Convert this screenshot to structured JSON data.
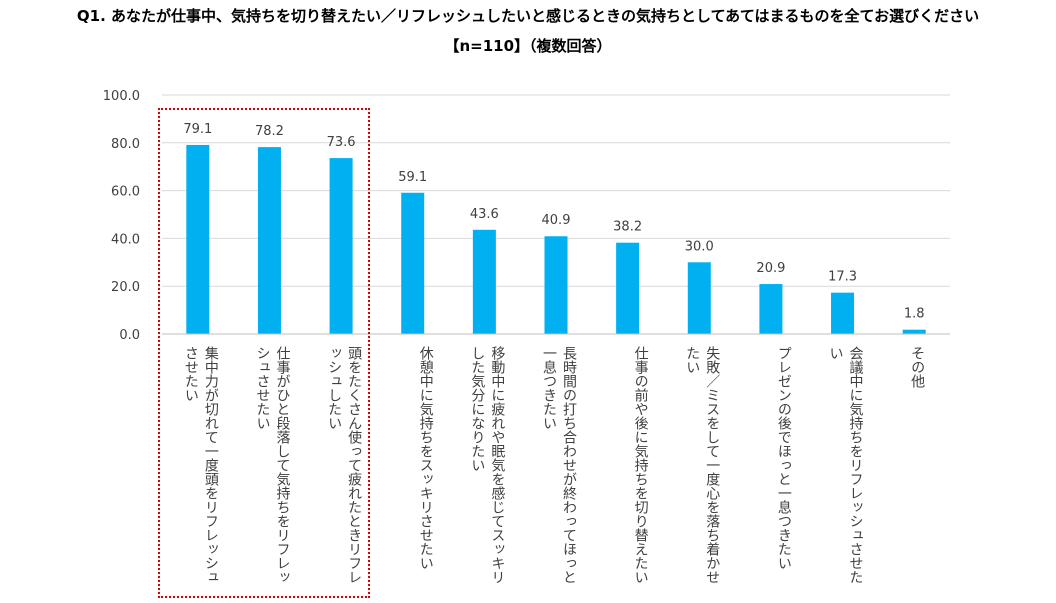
{
  "title_line1": "Q1. あなたが仕事中、気持ちを切り替えたい／リフレッシュしたいと感じるときの気持ちとしてあてはまるものを全てお選びください",
  "title_line2": "【n=110】（複数回答）",
  "colors": {
    "bar": "#00b0f0",
    "grid": "#d9d9d9",
    "highlight": "#d60000"
  },
  "chart_data": {
    "type": "bar",
    "ylim": [
      0,
      100
    ],
    "yticks": [
      "0.0",
      "20.0",
      "40.0",
      "60.0",
      "80.0",
      "100.0"
    ],
    "grid": true,
    "categories": [
      "集中力が切れて一度頭をリフレッシュさせたい",
      "仕事がひと段落して気持ちをリフレッシュさせたい",
      "頭をたくさん使って疲れたときリフレッシュしたい",
      "休憩中に気持ちをスッキリさせたい",
      "移動中に疲れや眠気を感じてスッキリした気分になりたい",
      "長時間の打ち合わせが終わってほっと一息つきたい",
      "仕事の前や後に気持ちを切り替えたい",
      "失敗／ミスをして一度心を落ち着かせたい",
      "プレゼンの後でほっと一息つきたい",
      "会議中に気持ちをリフレッシュさせたい",
      "その他"
    ],
    "values": [
      79.1,
      78.2,
      73.6,
      59.1,
      43.6,
      40.9,
      38.2,
      30.0,
      20.9,
      17.3,
      1.8
    ],
    "highlighted_categories": [
      0,
      1,
      2
    ]
  }
}
